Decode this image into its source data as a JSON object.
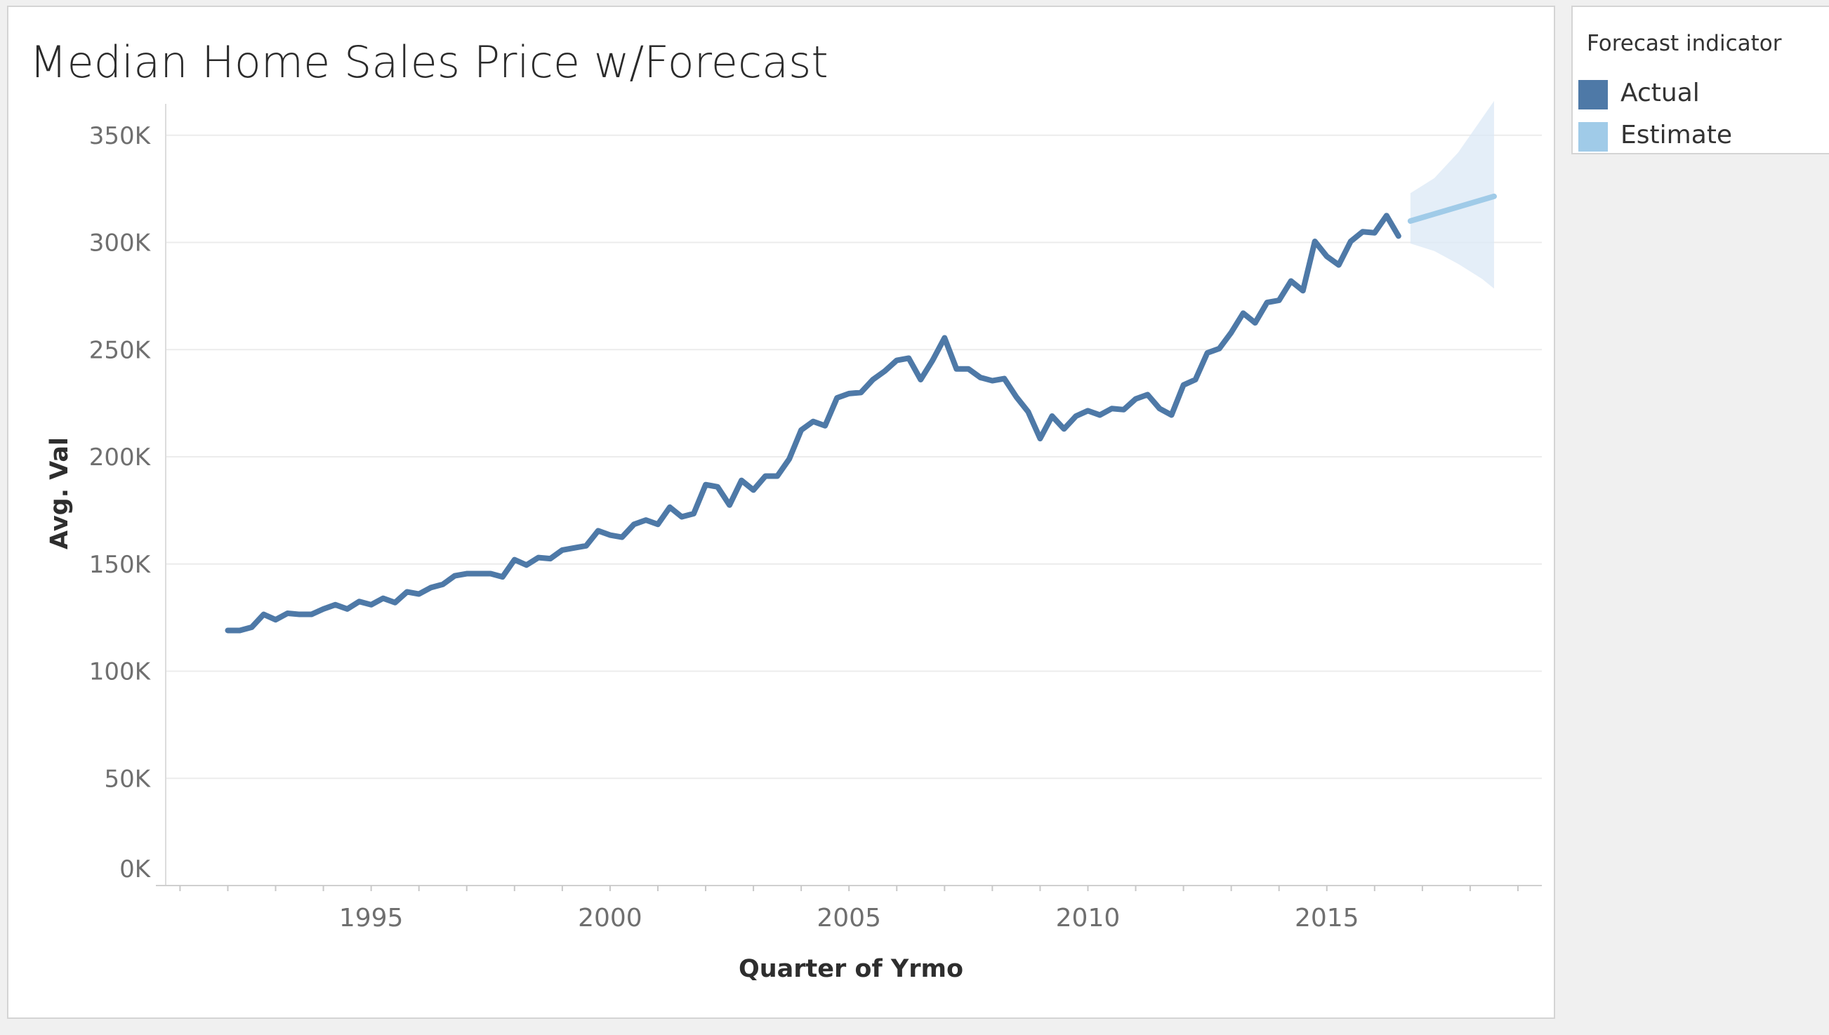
{
  "colors": {
    "actual": "#4e79a7",
    "estimate": "#a0cbe8",
    "band": "#dbe8f5",
    "grid": "#ececec"
  },
  "legend": {
    "title": "Forecast indicator",
    "items": [
      {
        "label": "Actual",
        "color": "#4e79a7"
      },
      {
        "label": "Estimate",
        "color": "#a0cbe8"
      }
    ]
  },
  "chart_data": {
    "type": "line",
    "title": "Median Home Sales Price w/Forecast",
    "xlabel": "Quarter of Yrmo",
    "ylabel": "Avg. Val",
    "xlim": [
      1990.7,
      2019.5
    ],
    "ylim": [
      0,
      350000
    ],
    "x_ticks": [
      {
        "value": 1995,
        "label": "1995"
      },
      {
        "value": 2000,
        "label": "2000"
      },
      {
        "value": 2005,
        "label": "2005"
      },
      {
        "value": 2010,
        "label": "2010"
      },
      {
        "value": 2015,
        "label": "2015"
      }
    ],
    "y_ticks": [
      {
        "value": 0,
        "label": "0K"
      },
      {
        "value": 50000,
        "label": "50K"
      },
      {
        "value": 100000,
        "label": "100K"
      },
      {
        "value": 150000,
        "label": "150K"
      },
      {
        "value": 200000,
        "label": "200K"
      },
      {
        "value": 250000,
        "label": "250K"
      },
      {
        "value": 300000,
        "label": "300K"
      },
      {
        "value": 350000,
        "label": "350K"
      }
    ],
    "grid": true,
    "legend_position": "top-right",
    "series": [
      {
        "name": "Actual",
        "points": [
          [
            1992.0,
            119000
          ],
          [
            1992.25,
            119000
          ],
          [
            1992.5,
            120500
          ],
          [
            1992.75,
            126500
          ],
          [
            1993.0,
            124000
          ],
          [
            1993.25,
            127000
          ],
          [
            1993.5,
            126500
          ],
          [
            1993.75,
            126500
          ],
          [
            1994.0,
            129000
          ],
          [
            1994.25,
            131000
          ],
          [
            1994.5,
            129000
          ],
          [
            1994.75,
            132500
          ],
          [
            1995.0,
            131000
          ],
          [
            1995.25,
            134000
          ],
          [
            1995.5,
            132000
          ],
          [
            1995.75,
            137000
          ],
          [
            1996.0,
            136000
          ],
          [
            1996.25,
            139000
          ],
          [
            1996.5,
            140500
          ],
          [
            1996.75,
            144500
          ],
          [
            1997.0,
            145500
          ],
          [
            1997.25,
            145500
          ],
          [
            1997.5,
            145500
          ],
          [
            1997.75,
            144000
          ],
          [
            1998.0,
            152000
          ],
          [
            1998.25,
            149500
          ],
          [
            1998.5,
            153000
          ],
          [
            1998.75,
            152500
          ],
          [
            1999.0,
            156500
          ],
          [
            1999.25,
            157500
          ],
          [
            1999.5,
            158500
          ],
          [
            1999.75,
            165500
          ],
          [
            2000.0,
            163500
          ],
          [
            2000.25,
            162500
          ],
          [
            2000.5,
            168500
          ],
          [
            2000.75,
            170500
          ],
          [
            2001.0,
            168500
          ],
          [
            2001.25,
            176500
          ],
          [
            2001.5,
            172000
          ],
          [
            2001.75,
            173500
          ],
          [
            2002.0,
            187000
          ],
          [
            2002.25,
            186000
          ],
          [
            2002.5,
            177500
          ],
          [
            2002.75,
            189000
          ],
          [
            2003.0,
            184500
          ],
          [
            2003.25,
            191000
          ],
          [
            2003.5,
            191000
          ],
          [
            2003.75,
            199000
          ],
          [
            2004.0,
            212500
          ],
          [
            2004.25,
            216500
          ],
          [
            2004.5,
            214500
          ],
          [
            2004.75,
            227500
          ],
          [
            2005.0,
            229500
          ],
          [
            2005.25,
            230000
          ],
          [
            2005.5,
            236000
          ],
          [
            2005.75,
            240000
          ],
          [
            2006.0,
            245000
          ],
          [
            2006.25,
            246000
          ],
          [
            2006.5,
            236000
          ],
          [
            2006.75,
            245000
          ],
          [
            2007.0,
            255500
          ],
          [
            2007.25,
            241000
          ],
          [
            2007.5,
            241000
          ],
          [
            2007.75,
            237000
          ],
          [
            2008.0,
            235500
          ],
          [
            2008.25,
            236500
          ],
          [
            2008.5,
            228000
          ],
          [
            2008.75,
            221000
          ],
          [
            2009.0,
            208500
          ],
          [
            2009.25,
            219000
          ],
          [
            2009.5,
            213000
          ],
          [
            2009.75,
            219000
          ],
          [
            2010.0,
            221500
          ],
          [
            2010.25,
            219500
          ],
          [
            2010.5,
            222500
          ],
          [
            2010.75,
            222000
          ],
          [
            2011.0,
            227000
          ],
          [
            2011.25,
            229000
          ],
          [
            2011.5,
            222500
          ],
          [
            2011.75,
            219500
          ],
          [
            2012.0,
            233500
          ],
          [
            2012.25,
            236000
          ],
          [
            2012.5,
            248500
          ],
          [
            2012.75,
            250500
          ],
          [
            2013.0,
            258000
          ],
          [
            2013.25,
            267000
          ],
          [
            2013.5,
            262500
          ],
          [
            2013.75,
            272000
          ],
          [
            2014.0,
            273000
          ],
          [
            2014.25,
            282000
          ],
          [
            2014.5,
            277500
          ],
          [
            2014.75,
            300500
          ],
          [
            2015.0,
            293500
          ],
          [
            2015.25,
            289500
          ],
          [
            2015.5,
            300500
          ],
          [
            2015.75,
            305000
          ],
          [
            2016.0,
            304500
          ],
          [
            2016.25,
            312500
          ],
          [
            2016.5,
            303000
          ]
        ]
      },
      {
        "name": "Estimate",
        "points": [
          [
            2016.75,
            310000
          ],
          [
            2018.5,
            321500
          ]
        ],
        "band": {
          "upper": [
            [
              2016.75,
              323000
            ],
            [
              2017.25,
              330000
            ],
            [
              2017.75,
              342000
            ],
            [
              2018.25,
              358000
            ],
            [
              2018.5,
              366000
            ]
          ],
          "lower": [
            [
              2016.75,
              299500
            ],
            [
              2017.25,
              296000
            ],
            [
              2017.75,
              290000
            ],
            [
              2018.25,
              283000
            ],
            [
              2018.5,
              278500
            ]
          ]
        }
      }
    ]
  }
}
